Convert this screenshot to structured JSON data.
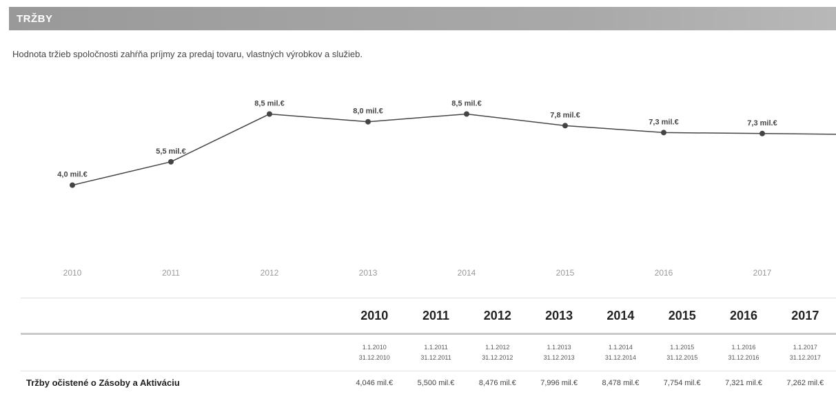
{
  "section": {
    "title": "TRŽBY",
    "description": "Hodnota tržieb spoločnosti zahŕňa príjmy za predaj tovaru, vlastných výrobkov a služieb."
  },
  "chart_data": {
    "type": "line",
    "x": [
      "2010",
      "2011",
      "2012",
      "2013",
      "2014",
      "2015",
      "2016",
      "2017"
    ],
    "values": [
      4.046,
      5.5,
      8.476,
      7.996,
      8.478,
      7.754,
      7.321,
      7.262
    ],
    "point_labels": [
      "4,0 mil.€",
      "5,5 mil.€",
      "8,5 mil.€",
      "8,0 mil.€",
      "8,5 mil.€",
      "7,8 mil.€",
      "7,3 mil.€",
      "7,3 mil.€"
    ],
    "xlabel": "",
    "ylabel": "",
    "ylim": [
      0,
      10
    ],
    "grid": false,
    "legend": false,
    "colors": {
      "line": "#444444",
      "marker": "#444444",
      "tick_label": "#9a9a9a"
    }
  },
  "table": {
    "years": [
      "2010",
      "2011",
      "2012",
      "2013",
      "2014",
      "2015",
      "2016",
      "2017"
    ],
    "period_from": [
      "1.1.2010",
      "1.1.2011",
      "1.1.2012",
      "1.1.2013",
      "1.1.2014",
      "1.1.2015",
      "1.1.2016",
      "1.1.2017"
    ],
    "period_to": [
      "31.12.2010",
      "31.12.2011",
      "31.12.2012",
      "31.12.2013",
      "31.12.2014",
      "31.12.2015",
      "31.12.2016",
      "31.12.2017"
    ],
    "row_label": "Tržby očistené o Zásoby a Aktiváciu",
    "row_values": [
      "4,046 mil.€",
      "5,500 mil.€",
      "8,476 mil.€",
      "7,996 mil.€",
      "8,478 mil.€",
      "7,754 mil.€",
      "7,321 mil.€",
      "7,262 mil.€"
    ]
  }
}
